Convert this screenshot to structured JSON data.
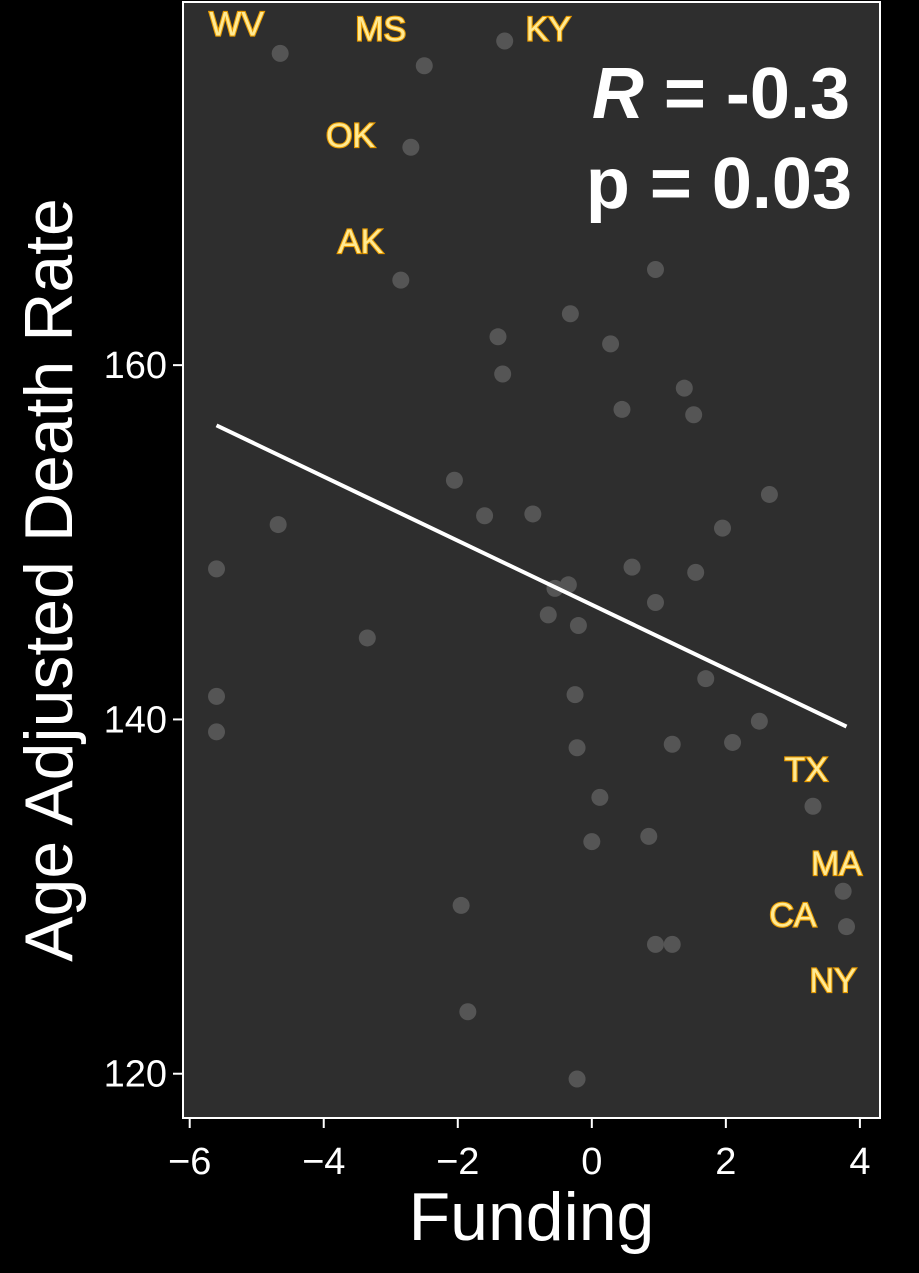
{
  "chart_data": {
    "type": "scatter",
    "title": "",
    "xlabel": "Funding",
    "ylabel": "Age Adjusted Death Rate",
    "xlim": [
      -6.1,
      4.3
    ],
    "ylim": [
      117.5,
      180.5
    ],
    "x_ticks": [
      -6,
      -4,
      -2,
      0,
      2,
      4
    ],
    "x_tick_labels": [
      "−6",
      "−4",
      "−2",
      "0",
      "2",
      "4"
    ],
    "y_ticks": [
      120,
      140,
      160
    ],
    "y_tick_labels": [
      "120",
      "140",
      "160"
    ],
    "grid": false,
    "legend": "none",
    "annotation": {
      "r_label": "R",
      "r_text": " = -0.3",
      "p_text": "p = 0.03",
      "position": "top-right"
    },
    "regression_line": {
      "x": [
        -5.6,
        3.8
      ],
      "y": [
        156.6,
        139.6
      ]
    },
    "points": [
      {
        "x": -4.65,
        "y": 177.6
      },
      {
        "x": -2.5,
        "y": 176.9
      },
      {
        "x": -1.3,
        "y": 178.3
      },
      {
        "x": -2.7,
        "y": 172.3
      },
      {
        "x": -2.85,
        "y": 164.8
      },
      {
        "x": 0.95,
        "y": 165.4
      },
      {
        "x": -0.32,
        "y": 162.9
      },
      {
        "x": -1.4,
        "y": 161.6
      },
      {
        "x": 0.28,
        "y": 161.2
      },
      {
        "x": -1.33,
        "y": 159.5
      },
      {
        "x": 1.38,
        "y": 158.7
      },
      {
        "x": 0.45,
        "y": 157.5
      },
      {
        "x": 1.52,
        "y": 157.2
      },
      {
        "x": -2.05,
        "y": 153.5
      },
      {
        "x": 2.65,
        "y": 152.7
      },
      {
        "x": -1.6,
        "y": 151.5
      },
      {
        "x": -0.88,
        "y": 151.6
      },
      {
        "x": -4.68,
        "y": 151.0
      },
      {
        "x": 1.95,
        "y": 150.8
      },
      {
        "x": -5.6,
        "y": 148.5
      },
      {
        "x": 0.6,
        "y": 148.6
      },
      {
        "x": 1.55,
        "y": 148.3
      },
      {
        "x": -0.55,
        "y": 147.4
      },
      {
        "x": -0.35,
        "y": 147.6
      },
      {
        "x": 0.95,
        "y": 146.6
      },
      {
        "x": -0.65,
        "y": 145.9
      },
      {
        "x": -0.2,
        "y": 145.3
      },
      {
        "x": -3.35,
        "y": 144.6
      },
      {
        "x": 1.7,
        "y": 142.3
      },
      {
        "x": -5.6,
        "y": 141.3
      },
      {
        "x": -0.25,
        "y": 141.4
      },
      {
        "x": 2.5,
        "y": 139.9
      },
      {
        "x": -5.6,
        "y": 139.3
      },
      {
        "x": 2.1,
        "y": 138.7
      },
      {
        "x": 1.2,
        "y": 138.6
      },
      {
        "x": -0.22,
        "y": 138.4
      },
      {
        "x": 3.3,
        "y": 135.1
      },
      {
        "x": 0.12,
        "y": 135.6
      },
      {
        "x": 0.85,
        "y": 133.4
      },
      {
        "x": 0.0,
        "y": 133.1
      },
      {
        "x": 3.75,
        "y": 130.3
      },
      {
        "x": -1.95,
        "y": 129.5
      },
      {
        "x": 3.8,
        "y": 128.3
      },
      {
        "x": 0.95,
        "y": 127.3
      },
      {
        "x": 1.2,
        "y": 127.3
      },
      {
        "x": -1.85,
        "y": 123.5
      },
      {
        "x": -0.22,
        "y": 119.7
      }
    ],
    "state_labels": [
      {
        "text": "WV",
        "x": -5.3,
        "y": 179.3
      },
      {
        "text": "MS",
        "x": -3.15,
        "y": 179.0
      },
      {
        "text": "KY",
        "x": -0.65,
        "y": 179.0
      },
      {
        "text": "OK",
        "x": -3.6,
        "y": 173.0
      },
      {
        "text": "AK",
        "x": -3.45,
        "y": 167.0
      },
      {
        "text": "TX",
        "x": 3.2,
        "y": 137.2
      },
      {
        "text": "MA",
        "x": 3.65,
        "y": 131.9
      },
      {
        "text": "CA",
        "x": 3.0,
        "y": 129.0
      },
      {
        "text": "NY",
        "x": 3.6,
        "y": 125.3
      }
    ]
  },
  "colors": {
    "background": "#000000",
    "panel": "#2e2e2e",
    "panel_border": "#ffffff",
    "point": "#555555",
    "line": "#ffffff",
    "label_fill": "#ffea94",
    "label_stroke": "#e89b00",
    "text": "#ffffff"
  }
}
